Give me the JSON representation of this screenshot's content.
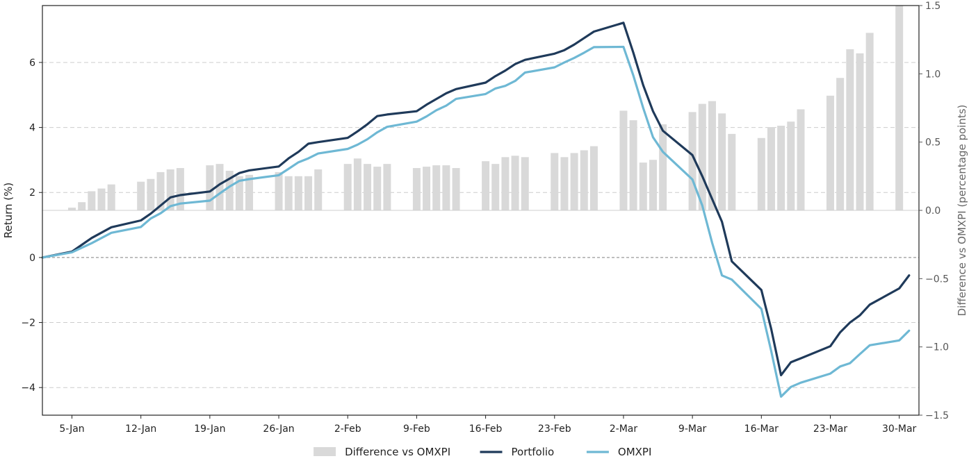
{
  "chart_data": {
    "type": "bar+line",
    "ylabel_left": "Return (%)",
    "ylabel_right": "Difference vs OMXPI (percentage points)",
    "ylim_left": [
      -4.85,
      7.75
    ],
    "ylim_right": [
      -1.5,
      1.5
    ],
    "yticks_left": [
      -4,
      -2,
      0,
      2,
      4,
      6
    ],
    "yticks_left_labels": [
      "−4",
      "−2",
      "0",
      "2",
      "4",
      "6"
    ],
    "yticks_right": [
      -1.5,
      -1.0,
      -0.5,
      0.0,
      0.5,
      1.0,
      1.5
    ],
    "yticks_right_labels": [
      "−1.5",
      "−1.0",
      "−0.5",
      "0.0",
      "0.5",
      "1.0",
      "1.5"
    ],
    "xlim": [
      -3,
      86
    ],
    "xticks": [
      0,
      7,
      14,
      21,
      28,
      35,
      42,
      49,
      56,
      63,
      70,
      77,
      84
    ],
    "xtick_labels": [
      "5-Jan",
      "12-Jan",
      "19-Jan",
      "26-Jan",
      "2-Feb",
      "9-Feb",
      "16-Feb",
      "23-Feb",
      "2-Mar",
      "9-Mar",
      "16-Mar",
      "23-Mar",
      "30-Mar"
    ],
    "grid": "horizontal dashed",
    "zero_line": true,
    "legend_position": "bottom",
    "series": [
      {
        "name": "Difference vs OMXPI",
        "type": "bar",
        "axis": "right",
        "color": "#d9d9d9",
        "x": [
          0,
          1,
          2,
          3,
          4,
          7,
          8,
          9,
          10,
          11,
          14,
          15,
          16,
          17,
          18,
          21,
          22,
          23,
          24,
          25,
          28,
          29,
          30,
          31,
          32,
          35,
          36,
          37,
          38,
          39,
          42,
          43,
          44,
          45,
          46,
          49,
          50,
          51,
          52,
          53,
          56,
          57,
          58,
          59,
          60,
          63,
          64,
          65,
          66,
          67,
          70,
          71,
          72,
          73,
          74,
          77,
          78,
          79,
          80,
          81,
          84
        ],
        "values": [
          0.02,
          0.06,
          0.14,
          0.16,
          0.19,
          0.21,
          0.23,
          0.28,
          0.3,
          0.31,
          0.33,
          0.34,
          0.29,
          0.25,
          0.26,
          0.28,
          0.25,
          0.25,
          0.25,
          0.3,
          0.34,
          0.38,
          0.34,
          0.32,
          0.34,
          0.31,
          0.32,
          0.33,
          0.33,
          0.31,
          0.36,
          0.34,
          0.39,
          0.4,
          0.39,
          0.42,
          0.39,
          0.42,
          0.44,
          0.47,
          0.73,
          0.66,
          0.35,
          0.37,
          0.63,
          0.72,
          0.78,
          0.8,
          0.71,
          0.56,
          0.53,
          0.61,
          0.62,
          0.65,
          0.74,
          0.84,
          0.97,
          1.18,
          1.15,
          1.3,
          1.5
        ]
      },
      {
        "name": "Portfolio",
        "type": "line",
        "axis": "left",
        "color": "#1f3a5a",
        "x": [
          -3,
          0,
          2,
          4,
          7,
          8,
          10,
          11,
          14,
          15,
          17,
          18,
          21,
          22,
          23,
          24,
          25,
          28,
          29,
          30,
          31,
          32,
          35,
          36,
          38,
          39,
          42,
          43,
          44,
          45,
          46,
          49,
          50,
          51,
          52,
          53,
          56,
          57,
          58,
          59,
          60,
          63,
          64,
          66,
          67,
          70,
          71,
          72,
          73,
          74,
          77,
          78,
          79,
          80,
          81,
          84,
          85
        ],
        "values": [
          0.0,
          0.18,
          0.6,
          0.93,
          1.14,
          1.35,
          1.85,
          1.92,
          2.03,
          2.25,
          2.6,
          2.68,
          2.8,
          3.05,
          3.25,
          3.5,
          3.55,
          3.68,
          3.88,
          4.1,
          4.35,
          4.4,
          4.5,
          4.7,
          5.05,
          5.18,
          5.38,
          5.58,
          5.75,
          5.95,
          6.08,
          6.27,
          6.38,
          6.55,
          6.75,
          6.95,
          7.22,
          6.3,
          5.3,
          4.5,
          3.9,
          3.15,
          2.5,
          1.1,
          -0.12,
          -1.0,
          -2.2,
          -3.62,
          -3.22,
          -3.1,
          -2.73,
          -2.3,
          -2.0,
          -1.78,
          -1.45,
          -0.95,
          -0.55
        ]
      },
      {
        "name": "OMXPI",
        "type": "line",
        "axis": "left",
        "color": "#6eb8d4",
        "x": [
          -3,
          0,
          1,
          2,
          4,
          7,
          8,
          9,
          10,
          11,
          14,
          15,
          16,
          17,
          18,
          21,
          22,
          23,
          24,
          25,
          28,
          29,
          30,
          31,
          32,
          35,
          36,
          37,
          38,
          39,
          42,
          43,
          44,
          45,
          46,
          49,
          50,
          51,
          52,
          53,
          56,
          57,
          58,
          59,
          60,
          63,
          64,
          65,
          66,
          67,
          70,
          71,
          72,
          73,
          74,
          77,
          78,
          79,
          80,
          81,
          84,
          85
        ],
        "values": [
          0.0,
          0.16,
          0.3,
          0.44,
          0.76,
          0.94,
          1.2,
          1.36,
          1.58,
          1.66,
          1.75,
          1.97,
          2.18,
          2.36,
          2.41,
          2.53,
          2.73,
          2.93,
          3.05,
          3.2,
          3.34,
          3.47,
          3.64,
          3.85,
          4.02,
          4.18,
          4.34,
          4.53,
          4.67,
          4.88,
          5.03,
          5.2,
          5.28,
          5.43,
          5.69,
          5.85,
          6.0,
          6.14,
          6.3,
          6.47,
          6.48,
          5.6,
          4.6,
          3.7,
          3.25,
          2.4,
          1.6,
          0.45,
          -0.55,
          -0.68,
          -1.58,
          -2.88,
          -4.28,
          -3.98,
          -3.85,
          -3.57,
          -3.35,
          -3.25,
          -2.97,
          -2.7,
          -2.55,
          -2.25
        ]
      }
    ],
    "legend": [
      {
        "name": "Difference vs OMXPI",
        "color": "#d9d9d9",
        "marker": "bar"
      },
      {
        "name": "Portfolio",
        "color": "#1f3a5a",
        "marker": "line"
      },
      {
        "name": "OMXPI",
        "color": "#6eb8d4",
        "marker": "line"
      }
    ]
  }
}
